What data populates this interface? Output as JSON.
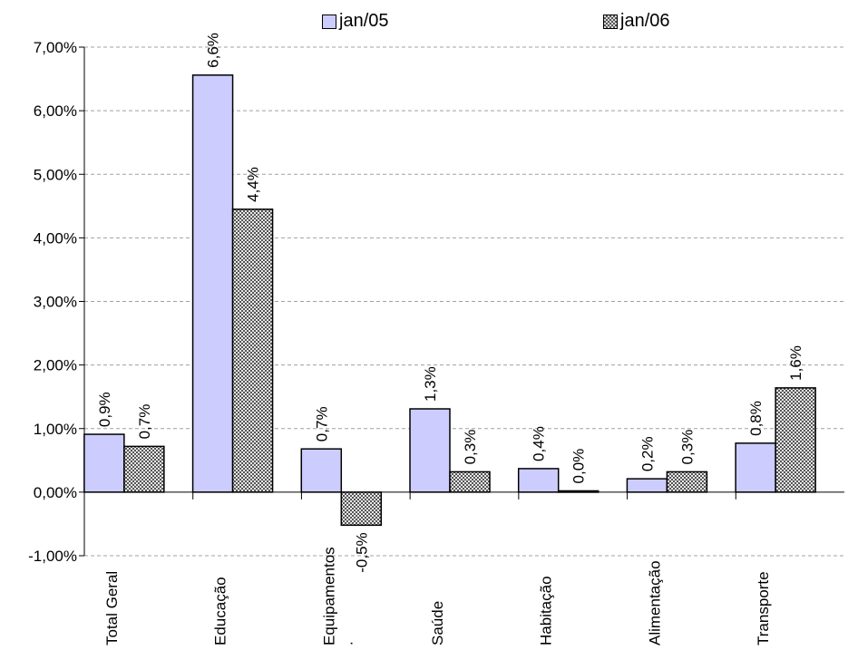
{
  "legend": [
    {
      "name": "jan/05",
      "icon": "lavender-square-icon"
    },
    {
      "name": "jan/06",
      "icon": "hatched-square-icon"
    }
  ],
  "chart_data": {
    "type": "bar",
    "title": "",
    "xlabel": "",
    "ylabel": "",
    "categories": [
      "Total Geral",
      "Educação",
      "Equipamentos\n.",
      "Saúde",
      "Habitação",
      "Alimentação",
      "Transporte"
    ],
    "series": [
      {
        "name": "jan/05",
        "values": [
          0.9,
          6.6,
          0.7,
          1.3,
          0.4,
          0.2,
          0.8
        ],
        "plotted": [
          0.91,
          6.56,
          0.68,
          1.31,
          0.37,
          0.21,
          0.77
        ],
        "labels": [
          "0,9%",
          "6,6%",
          "0,7%",
          "1,3%",
          "0,4%",
          "0,2%",
          "0,8%"
        ],
        "color": "#ccccff"
      },
      {
        "name": "jan/06",
        "values": [
          0.7,
          4.4,
          -0.5,
          0.3,
          0.0,
          0.3,
          1.6
        ],
        "plotted": [
          0.72,
          4.45,
          -0.52,
          0.32,
          0.02,
          0.32,
          1.64
        ],
        "labels": [
          "0,7%",
          "4,4%",
          "-0,5%",
          "0,3%",
          "0,0%",
          "0,3%",
          "1,6%"
        ],
        "color": "#c0c0c0"
      }
    ],
    "ylim": [
      -1,
      7
    ],
    "yticks": [
      "-1,00%",
      "0,00%",
      "1,00%",
      "2,00%",
      "3,00%",
      "4,00%",
      "5,00%",
      "6,00%",
      "7,00%"
    ],
    "grid": true,
    "legend_position": "top"
  }
}
